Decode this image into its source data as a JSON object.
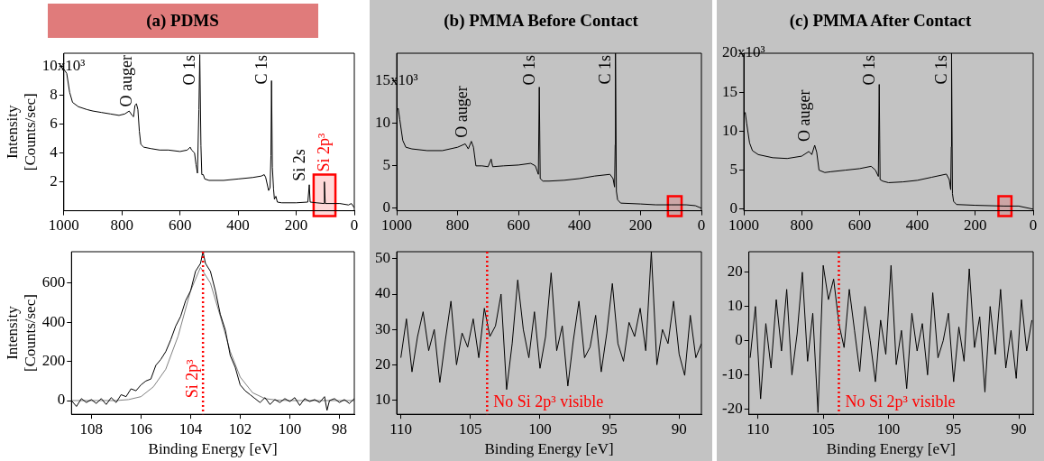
{
  "chart_data": [
    {
      "type": "line",
      "title": "(a) PDMS",
      "ylabel": "Intensity\n[Counts/sec]",
      "color": "#000000",
      "x": [
        1000,
        990,
        980,
        970,
        950,
        920,
        900,
        870,
        840,
        810,
        790,
        775,
        765,
        760,
        755,
        750,
        745,
        740,
        735,
        725,
        700,
        670,
        640,
        600,
        575,
        565,
        560,
        550,
        545,
        540,
        535,
        532,
        528,
        525,
        520,
        515,
        500,
        450,
        400,
        350,
        320,
        310,
        305,
        295,
        290,
        287,
        285,
        282,
        278,
        275,
        270,
        265,
        250,
        200,
        160,
        155,
        152,
        130,
        105,
        103,
        100,
        50,
        20,
        10,
        0
      ],
      "values": [
        9.8,
        9.5,
        8.2,
        7.5,
        7.2,
        7.0,
        6.9,
        6.8,
        6.7,
        6.6,
        6.7,
        6.9,
        6.6,
        6.5,
        7.3,
        7.4,
        7.0,
        5.5,
        4.6,
        4.4,
        4.3,
        4.2,
        4.2,
        4.1,
        4.2,
        4.4,
        4.2,
        4.0,
        3.2,
        2.6,
        7.0,
        10.8,
        4.5,
        2.5,
        2.5,
        2.2,
        2.1,
        2.1,
        2.2,
        2.3,
        2.4,
        2.5,
        2.3,
        1.4,
        1.6,
        3.8,
        9.0,
        3.0,
        1.5,
        0.8,
        1.0,
        0.6,
        0.55,
        0.55,
        0.6,
        1.8,
        0.6,
        0.55,
        0.5,
        2.0,
        0.5,
        0.5,
        0.4,
        0.5,
        0.2
      ],
      "xlim": [
        1000,
        0
      ],
      "xticks": [
        1000,
        800,
        600,
        400,
        200,
        0
      ],
      "ylim": [
        0,
        10.9
      ],
      "yticks": [
        2,
        4,
        6,
        8,
        10
      ],
      "annotations": [
        "x10³",
        {
          "text": "O auger",
          "x": 750,
          "y": 7.4
        },
        {
          "text": "O 1s",
          "x": 532,
          "y": 10.8
        },
        {
          "text": "C 1s",
          "x": 285,
          "y": 9.0
        },
        {
          "text": "Si 2s",
          "x": 155,
          "y": 1.8
        }
      ],
      "bands": [
        {
          "axis": "x",
          "from": 140,
          "to": 65,
          "label": "Si 2p³",
          "color": "#ff0000"
        }
      ]
    },
    {
      "type": "line",
      "title": "(b) PMMA Before Contact",
      "color": "#000000",
      "x": [
        1000,
        995,
        990,
        980,
        970,
        950,
        900,
        850,
        800,
        775,
        765,
        755,
        748,
        740,
        720,
        700,
        690,
        685,
        650,
        600,
        560,
        545,
        535,
        532,
        529,
        520,
        500,
        450,
        400,
        350,
        300,
        290,
        285,
        283,
        282,
        279,
        275,
        265,
        200,
        150,
        100,
        50,
        20,
        0
      ],
      "values": [
        11.5,
        11.8,
        10.5,
        8.0,
        7.2,
        7.0,
        6.8,
        6.8,
        7.2,
        7.6,
        7.0,
        7.9,
        7.2,
        5.0,
        5.0,
        4.9,
        5.8,
        4.9,
        5.0,
        5.1,
        5.3,
        5.0,
        4.0,
        14.3,
        3.5,
        3.2,
        3.2,
        3.3,
        3.5,
        3.8,
        4.0,
        3.5,
        2.5,
        7.5,
        18.3,
        2.0,
        1.0,
        0.6,
        0.5,
        0.4,
        0.4,
        0.4,
        0.3,
        0.0
      ],
      "xlim": [
        1000,
        0
      ],
      "xticks": [
        1000,
        800,
        600,
        400,
        200,
        0
      ],
      "ylim": [
        -0.3,
        18.3
      ],
      "yticks": [
        0,
        5,
        10,
        15
      ],
      "annotations": [
        "x10³",
        {
          "text": "O auger",
          "x": 755,
          "y": 7.9
        },
        {
          "text": "O 1s",
          "x": 532,
          "y": 14.3
        },
        {
          "text": "C 1s",
          "x": 282,
          "y": 18.3
        }
      ],
      "bands": [
        {
          "axis": "x",
          "from": 110,
          "to": 65,
          "color": "#ff0000"
        }
      ]
    },
    {
      "type": "line",
      "title": "(c) PMMA After Contact",
      "color": "#000000",
      "x": [
        1000,
        995,
        990,
        980,
        970,
        950,
        900,
        850,
        800,
        775,
        765,
        755,
        748,
        740,
        720,
        700,
        650,
        600,
        560,
        545,
        535,
        532,
        529,
        520,
        500,
        450,
        400,
        350,
        300,
        290,
        285,
        283,
        282,
        279,
        275,
        265,
        200,
        100,
        50,
        0
      ],
      "values": [
        12.0,
        12.4,
        11.0,
        8.5,
        7.5,
        7.0,
        6.6,
        6.5,
        6.8,
        7.4,
        7.0,
        8.2,
        7.3,
        5.0,
        4.7,
        4.8,
        5.0,
        5.2,
        5.5,
        5.0,
        4.2,
        16.0,
        3.8,
        3.6,
        3.4,
        3.5,
        3.7,
        4.1,
        4.5,
        3.8,
        2.5,
        8.0,
        20.0,
        2.0,
        1.0,
        0.6,
        0.5,
        0.4,
        0.4,
        0.0
      ],
      "xlim": [
        1000,
        0
      ],
      "xticks": [
        1000,
        800,
        600,
        400,
        200,
        0
      ],
      "ylim": [
        -0.2,
        20
      ],
      "yticks": [
        0,
        5,
        10,
        15,
        20
      ],
      "annotations": [
        "x10³",
        {
          "text": "O auger",
          "x": 755,
          "y": 8.2
        },
        {
          "text": "O 1s",
          "x": 532,
          "y": 16.0
        },
        {
          "text": "C 1s",
          "x": 282,
          "y": 20.0
        }
      ],
      "bands": [
        {
          "axis": "x",
          "from": 120,
          "to": 75,
          "color": "#ff0000"
        }
      ]
    },
    {
      "type": "line",
      "xlabel": "Binding Energy [eV]",
      "ylabel": "Intensity\n[Counts/sec]",
      "series": [
        {
          "color": "#000000",
          "x": [
            108.8,
            108.6,
            108.4,
            108.2,
            108,
            107.8,
            107.6,
            107.4,
            107.2,
            107,
            106.8,
            106.6,
            106.4,
            106.2,
            106,
            105.8,
            105.6,
            105.4,
            105.2,
            105,
            104.8,
            104.6,
            104.4,
            104.2,
            104,
            103.8,
            103.6,
            103.5,
            103.4,
            103.2,
            103,
            102.8,
            102.6,
            102.4,
            102.2,
            102,
            101.8,
            101.6,
            101.4,
            101.2,
            101,
            100.8,
            100.6,
            100.4,
            100.2,
            100,
            99.8,
            99.6,
            99.4,
            99.2,
            99,
            98.8,
            98.6,
            98.5,
            98.4,
            98.2,
            98,
            97.8,
            97.6,
            97.4
          ],
          "values": [
            0,
            -30,
            10,
            -10,
            5,
            -15,
            10,
            -20,
            15,
            -10,
            30,
            20,
            60,
            50,
            80,
            100,
            110,
            180,
            210,
            250,
            310,
            380,
            430,
            510,
            560,
            660,
            700,
            760,
            700,
            660,
            560,
            440,
            360,
            230,
            170,
            80,
            50,
            30,
            10,
            -10,
            15,
            -20,
            5,
            -10,
            10,
            -5,
            15,
            -25,
            10,
            -5,
            5,
            -10,
            20,
            -50,
            0,
            10,
            -10,
            5,
            -15,
            10
          ]
        },
        {
          "color": "#808080",
          "x": [
            108.8,
            107,
            106.5,
            106,
            105.5,
            105,
            104.5,
            104,
            103.6,
            103.2,
            102.8,
            102.4,
            102,
            101.5,
            101,
            100.5,
            100,
            97.4
          ],
          "values": [
            0,
            0,
            5,
            20,
            70,
            160,
            330,
            560,
            680,
            600,
            430,
            250,
            120,
            40,
            10,
            2,
            0,
            0
          ]
        }
      ],
      "xlim": [
        108.8,
        97.4
      ],
      "xticks": [
        108,
        106,
        104,
        102,
        100,
        98
      ],
      "ylim": [
        -70,
        760
      ],
      "yticks": [
        0,
        200,
        400,
        600
      ],
      "ref_lines": [
        {
          "axis": "x",
          "value": 103.5,
          "label": "Si 2p³",
          "color": "#ff0000",
          "line_style": "dotted"
        }
      ]
    },
    {
      "type": "line",
      "xlabel": "Binding Energy [eV]",
      "color": "#000000",
      "x": [
        110,
        109.6,
        109.2,
        108.8,
        108.4,
        108,
        107.6,
        107.2,
        106.8,
        106.4,
        106,
        105.6,
        105.2,
        104.8,
        104.4,
        104,
        103.6,
        103.2,
        102.8,
        102.4,
        102,
        101.6,
        101.2,
        100.8,
        100.4,
        100,
        99.6,
        99.2,
        98.8,
        98.4,
        98,
        97.6,
        97.2,
        96.8,
        96.4,
        96,
        95.6,
        95.2,
        94.8,
        94.4,
        94,
        93.6,
        93.2,
        92.8,
        92.4,
        92,
        91.6,
        91.2,
        90.8,
        90.4,
        90,
        89.6,
        89.2,
        88.8,
        88.4
      ],
      "values": [
        22,
        33,
        18,
        28,
        35,
        24,
        30,
        15,
        27,
        38,
        20,
        29,
        25,
        33,
        22,
        36,
        28,
        31,
        40,
        13,
        26,
        44,
        30,
        22,
        35,
        19,
        28,
        46,
        24,
        31,
        14,
        27,
        38,
        22,
        25,
        34,
        18,
        29,
        43,
        26,
        21,
        32,
        28,
        36,
        24,
        52,
        20,
        30,
        26,
        38,
        23,
        17,
        34,
        22,
        26
      ],
      "xlim": [
        110.3,
        88.4
      ],
      "xticks": [
        110,
        105,
        100,
        95,
        90
      ],
      "ylim": [
        6,
        52
      ],
      "yticks": [
        10,
        20,
        30,
        40,
        50
      ],
      "ref_lines": [
        {
          "axis": "x",
          "value": 103.8,
          "label": "No Si 2p³ visible",
          "color": "#ff0000",
          "line_style": "dotted"
        }
      ]
    },
    {
      "type": "line",
      "xlabel": "Binding Energy [eV]",
      "color": "#000000",
      "x": [
        110.6,
        110.2,
        109.8,
        109.4,
        109,
        108.6,
        108.2,
        107.8,
        107.4,
        107,
        106.6,
        106.2,
        105.8,
        105.4,
        105,
        104.6,
        104.2,
        103.8,
        103.4,
        103,
        102.6,
        102.2,
        101.8,
        101.4,
        101,
        100.6,
        100.2,
        99.8,
        99.4,
        99,
        98.6,
        98.2,
        97.8,
        97.4,
        97,
        96.6,
        96.2,
        95.8,
        95.4,
        95,
        94.6,
        94.2,
        93.8,
        93.4,
        93,
        92.6,
        92.2,
        91.8,
        91.4,
        91,
        90.6,
        90.2,
        89.8,
        89.4,
        89
      ],
      "values": [
        -5,
        10,
        -17,
        5,
        -8,
        12,
        -3,
        15,
        -10,
        2,
        20,
        -6,
        8,
        -21,
        22,
        12,
        18,
        5,
        -2,
        15,
        3,
        -9,
        10,
        0,
        -12,
        6,
        -4,
        22,
        -7,
        3,
        -14,
        8,
        -3,
        5,
        -10,
        14,
        -5,
        0,
        8,
        -12,
        4,
        -6,
        21,
        -2,
        7,
        -15,
        10,
        -4,
        15,
        -8,
        3,
        -11,
        12,
        -3,
        6
      ],
      "xlim": [
        110.7,
        88.9
      ],
      "xticks": [
        110,
        105,
        100,
        95,
        90
      ],
      "ylim": [
        -21.5,
        26
      ],
      "yticks": [
        -20,
        -10,
        0,
        10,
        20
      ],
      "ref_lines": [
        {
          "axis": "x",
          "value": 103.8,
          "label": "No Si 2p³ visible",
          "color": "#ff0000",
          "line_style": "dotted"
        }
      ]
    }
  ]
}
